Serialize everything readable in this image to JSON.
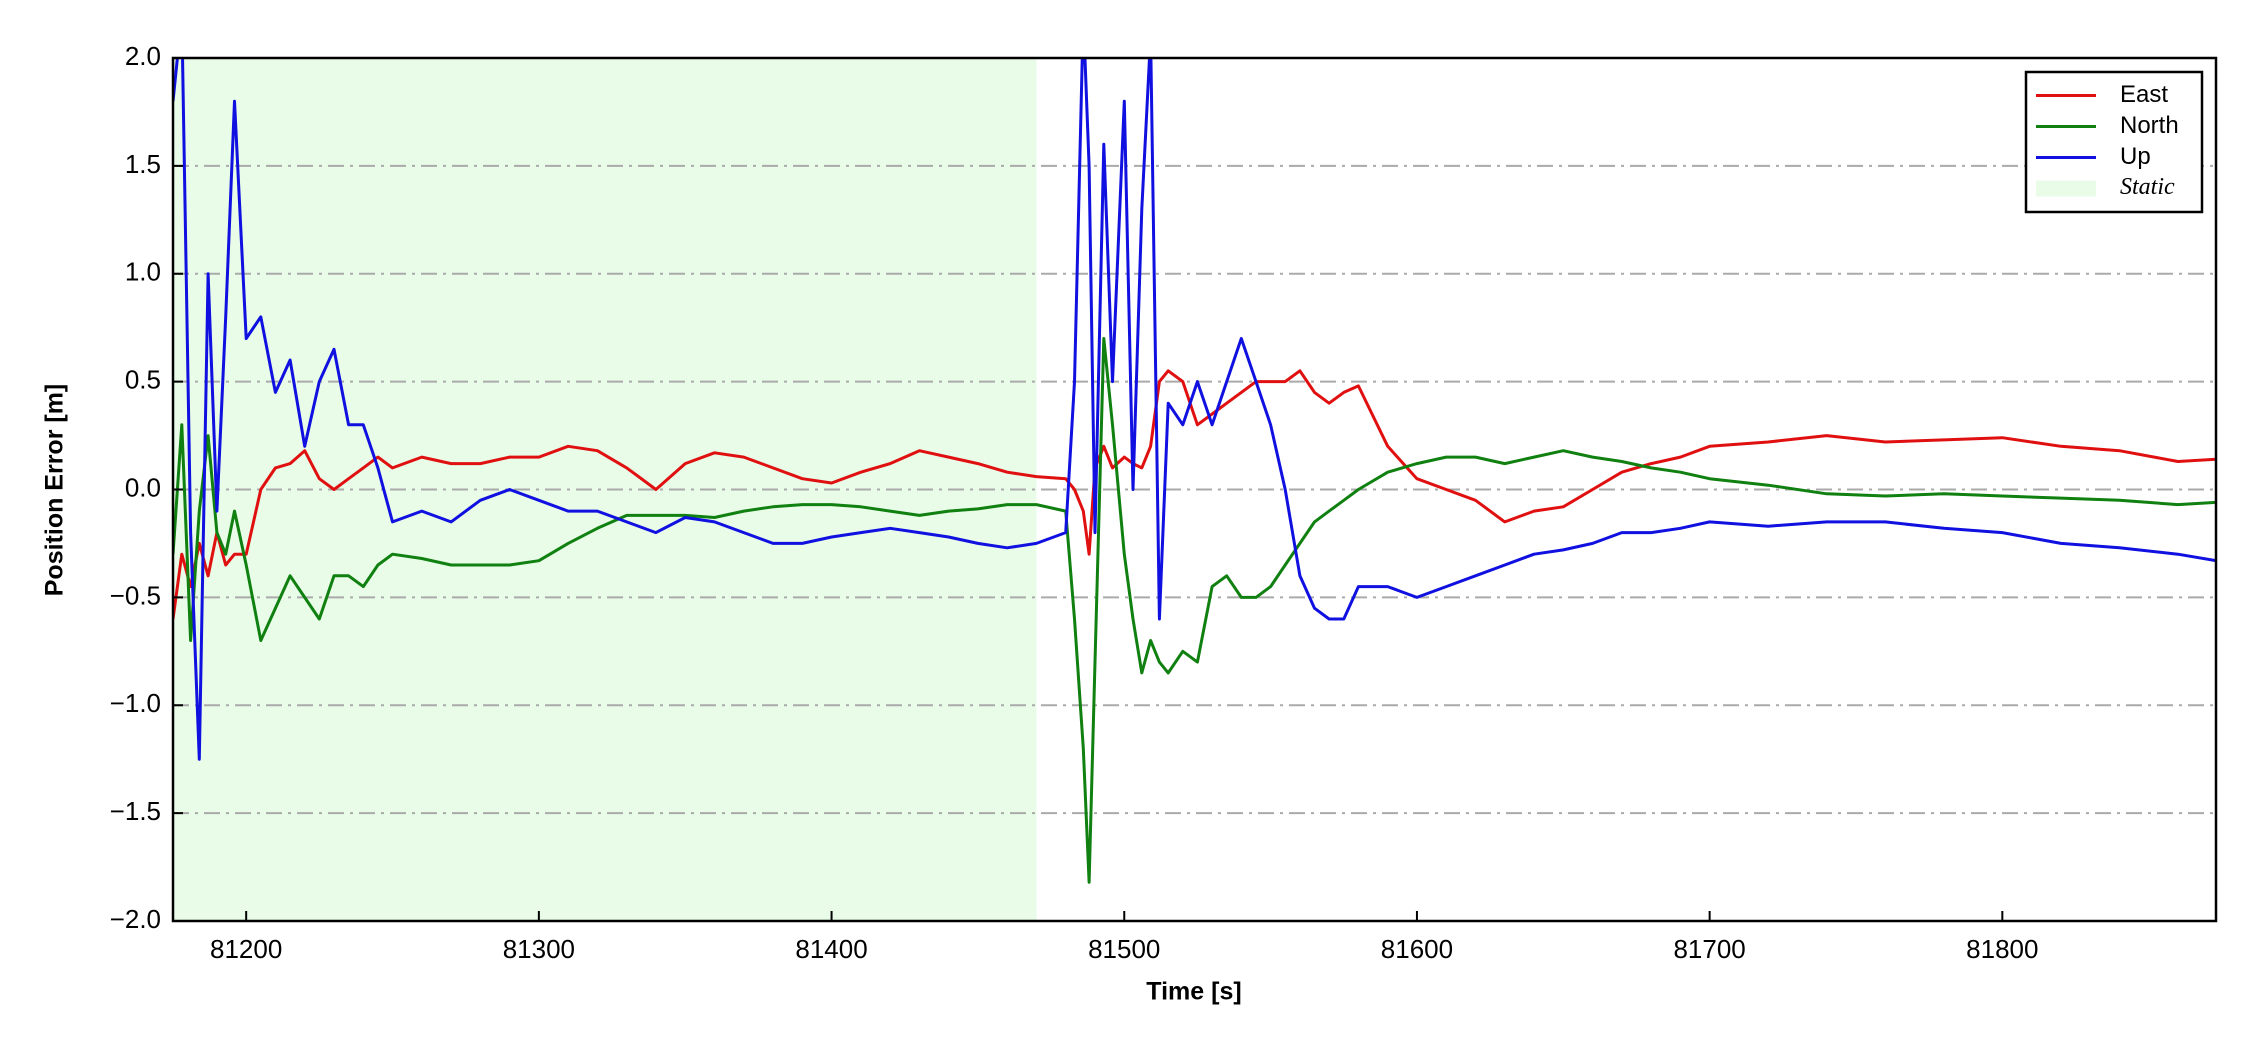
{
  "chart_data": {
    "type": "line",
    "xlabel": "Time [s]",
    "ylabel": "Position Error [m]",
    "xlim": [
      81175,
      81873
    ],
    "ylim": [
      -2.0,
      2.0
    ],
    "xticks": [
      81200,
      81300,
      81400,
      81500,
      81600,
      81700,
      81800
    ],
    "yticks": [
      {
        "value": -2.0,
        "label": "−2.0"
      },
      {
        "value": -1.5,
        "label": "−1.5"
      },
      {
        "value": -1.0,
        "label": "−1.0"
      },
      {
        "value": -0.5,
        "label": "−0.5"
      },
      {
        "value": 0.0,
        "label": "0.0"
      },
      {
        "value": 0.5,
        "label": "0.5"
      },
      {
        "value": 1.0,
        "label": "1.0"
      },
      {
        "value": 1.5,
        "label": "1.5"
      },
      {
        "value": 2.0,
        "label": "2.0"
      }
    ],
    "grid": true,
    "legend": "upper right",
    "shaded_region": {
      "label": "Static",
      "xrange": [
        81175,
        81470
      ],
      "color": "#e8fce8"
    },
    "x": [
      81175,
      81178,
      81181,
      81184,
      81187,
      81190,
      81193,
      81196,
      81200,
      81205,
      81210,
      81215,
      81220,
      81225,
      81230,
      81235,
      81240,
      81245,
      81250,
      81260,
      81270,
      81280,
      81290,
      81300,
      81310,
      81320,
      81330,
      81340,
      81350,
      81360,
      81370,
      81380,
      81390,
      81400,
      81410,
      81420,
      81430,
      81440,
      81450,
      81460,
      81470,
      81480,
      81483,
      81486,
      81488,
      81490,
      81493,
      81496,
      81500,
      81503,
      81506,
      81509,
      81512,
      81515,
      81520,
      81525,
      81530,
      81535,
      81540,
      81545,
      81550,
      81555,
      81560,
      81565,
      81570,
      81575,
      81580,
      81590,
      81600,
      81610,
      81620,
      81630,
      81640,
      81650,
      81660,
      81670,
      81680,
      81690,
      81700,
      81720,
      81740,
      81760,
      81780,
      81800,
      81820,
      81840,
      81860,
      81873
    ],
    "series": [
      {
        "name": "East",
        "color": "#e01010",
        "values": [
          -0.6,
          -0.3,
          -0.45,
          -0.25,
          -0.4,
          -0.2,
          -0.35,
          -0.3,
          -0.3,
          0.0,
          0.1,
          0.12,
          0.18,
          0.05,
          0.0,
          0.05,
          0.1,
          0.15,
          0.1,
          0.15,
          0.12,
          0.12,
          0.15,
          0.15,
          0.2,
          0.18,
          0.1,
          0.0,
          0.12,
          0.17,
          0.15,
          0.1,
          0.05,
          0.03,
          0.08,
          0.12,
          0.18,
          0.15,
          0.12,
          0.08,
          0.06,
          0.05,
          0.0,
          -0.1,
          -0.3,
          0.1,
          0.2,
          0.1,
          0.15,
          0.12,
          0.1,
          0.2,
          0.5,
          0.55,
          0.5,
          0.3,
          0.35,
          0.4,
          0.45,
          0.5,
          0.5,
          0.5,
          0.55,
          0.45,
          0.4,
          0.45,
          0.48,
          0.2,
          0.05,
          0.0,
          -0.05,
          -0.15,
          -0.1,
          -0.08,
          0.0,
          0.08,
          0.12,
          0.15,
          0.2,
          0.22,
          0.25,
          0.22,
          0.23,
          0.24,
          0.2,
          0.18,
          0.13,
          0.14
        ]
      },
      {
        "name": "North",
        "color": "#108010",
        "values": [
          -0.3,
          0.3,
          -0.7,
          -0.1,
          0.25,
          -0.2,
          -0.3,
          -0.1,
          -0.35,
          -0.7,
          -0.55,
          -0.4,
          -0.5,
          -0.6,
          -0.4,
          -0.4,
          -0.45,
          -0.35,
          -0.3,
          -0.32,
          -0.35,
          -0.35,
          -0.35,
          -0.33,
          -0.25,
          -0.18,
          -0.12,
          -0.12,
          -0.12,
          -0.13,
          -0.1,
          -0.08,
          -0.07,
          -0.07,
          -0.08,
          -0.1,
          -0.12,
          -0.1,
          -0.09,
          -0.07,
          -0.07,
          -0.1,
          -0.6,
          -1.2,
          -1.82,
          -0.8,
          0.7,
          0.3,
          -0.3,
          -0.6,
          -0.85,
          -0.7,
          -0.8,
          -0.85,
          -0.75,
          -0.8,
          -0.45,
          -0.4,
          -0.5,
          -0.5,
          -0.45,
          -0.35,
          -0.25,
          -0.15,
          -0.1,
          -0.05,
          0.0,
          0.08,
          0.12,
          0.15,
          0.15,
          0.12,
          0.15,
          0.18,
          0.15,
          0.13,
          0.1,
          0.08,
          0.05,
          0.02,
          -0.02,
          -0.03,
          -0.02,
          -0.03,
          -0.04,
          -0.05,
          -0.07,
          -0.06
        ]
      },
      {
        "name": "Up",
        "color": "#1010e0",
        "values": [
          1.8,
          2.2,
          -0.2,
          -1.25,
          1.0,
          -0.1,
          0.8,
          1.8,
          0.7,
          0.8,
          0.45,
          0.6,
          0.2,
          0.5,
          0.65,
          0.3,
          0.3,
          0.1,
          -0.15,
          -0.1,
          -0.15,
          -0.05,
          0.0,
          -0.05,
          -0.1,
          -0.1,
          -0.15,
          -0.2,
          -0.13,
          -0.15,
          -0.2,
          -0.25,
          -0.25,
          -0.22,
          -0.2,
          -0.18,
          -0.2,
          -0.22,
          -0.25,
          -0.27,
          -0.25,
          -0.2,
          0.5,
          2.2,
          1.5,
          -0.2,
          1.6,
          0.5,
          1.8,
          0.0,
          1.3,
          2.1,
          -0.6,
          0.4,
          0.3,
          0.5,
          0.3,
          0.5,
          0.7,
          0.5,
          0.3,
          0.0,
          -0.4,
          -0.55,
          -0.6,
          -0.6,
          -0.45,
          -0.45,
          -0.5,
          -0.45,
          -0.4,
          -0.35,
          -0.3,
          -0.28,
          -0.25,
          -0.2,
          -0.2,
          -0.18,
          -0.15,
          -0.17,
          -0.15,
          -0.15,
          -0.18,
          -0.2,
          -0.25,
          -0.27,
          -0.3,
          -0.33
        ]
      }
    ]
  }
}
